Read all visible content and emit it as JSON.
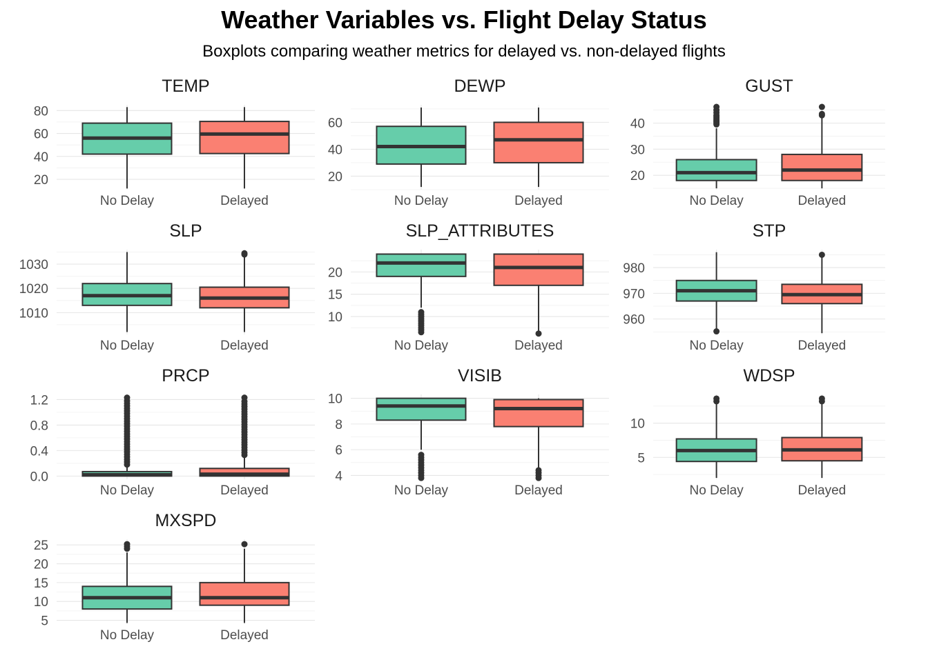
{
  "title": "Weather Variables vs. Flight Delay Status",
  "subtitle": "Boxplots comparing weather metrics for delayed vs. non-delayed flights",
  "colors": {
    "No Delay": "#66cdaa",
    "Delayed": "#fa8072"
  },
  "chart_data": [
    {
      "type": "boxplot",
      "title": "TEMP",
      "categories": [
        "No Delay",
        "Delayed"
      ],
      "ylim": [
        11,
        85
      ],
      "yticks": [
        20,
        40,
        60,
        80
      ],
      "ytick_labels": [
        "20",
        "40",
        "60",
        "80"
      ],
      "boxes": [
        {
          "category": "No Delay",
          "whisker_low": 12,
          "q1": 42,
          "median": 56,
          "q3": 69,
          "whisker_high": 83,
          "outliers": []
        },
        {
          "category": "Delayed",
          "whisker_low": 12,
          "q1": 42.5,
          "median": 59.5,
          "q3": 70.5,
          "whisker_high": 83,
          "outliers": []
        }
      ]
    },
    {
      "type": "boxplot",
      "title": "DEWP",
      "categories": [
        "No Delay",
        "Delayed"
      ],
      "ylim": [
        10,
        73
      ],
      "yticks": [
        20,
        40,
        60
      ],
      "ytick_labels": [
        "20",
        "40",
        "60"
      ],
      "boxes": [
        {
          "category": "No Delay",
          "whisker_low": 12,
          "q1": 29,
          "median": 42,
          "q3": 57,
          "whisker_high": 71,
          "outliers": []
        },
        {
          "category": "Delayed",
          "whisker_low": 12,
          "q1": 30,
          "median": 47,
          "q3": 60,
          "whisker_high": 71,
          "outliers": []
        }
      ]
    },
    {
      "type": "boxplot",
      "title": "GUST",
      "categories": [
        "No Delay",
        "Delayed"
      ],
      "ylim": [
        14.5,
        47
      ],
      "yticks": [
        20,
        30,
        40
      ],
      "ytick_labels": [
        "20",
        "30",
        "40"
      ],
      "boxes": [
        {
          "category": "No Delay",
          "whisker_low": 15,
          "q1": 18,
          "median": 21,
          "q3": 26,
          "whisker_high": 38,
          "outliers": [
            39.5,
            40,
            40.5,
            41,
            41.5,
            42,
            42.5,
            43,
            44,
            45,
            46.2
          ]
        },
        {
          "category": "Delayed",
          "whisker_low": 15,
          "q1": 18,
          "median": 22,
          "q3": 28,
          "whisker_high": 42,
          "outliers": [
            43,
            43.5,
            46.2
          ]
        }
      ]
    },
    {
      "type": "boxplot",
      "title": "SLP",
      "categories": [
        "No Delay",
        "Delayed"
      ],
      "ylim": [
        1001,
        1036
      ],
      "yticks": [
        1010,
        1020,
        1030
      ],
      "ytick_labels": [
        "1010",
        "1020",
        "1030"
      ],
      "boxes": [
        {
          "category": "No Delay",
          "whisker_low": 1002,
          "q1": 1013,
          "median": 1017,
          "q3": 1022,
          "whisker_high": 1035,
          "outliers": []
        },
        {
          "category": "Delayed",
          "whisker_low": 1002,
          "q1": 1012,
          "median": 1016,
          "q3": 1020.5,
          "whisker_high": 1033,
          "outliers": [
            1034,
            1034.5
          ]
        }
      ]
    },
    {
      "type": "boxplot",
      "title": "SLP_ATTRIBUTES",
      "categories": [
        "No Delay",
        "Delayed"
      ],
      "ylim": [
        6,
        25
      ],
      "yticks": [
        10,
        15,
        20
      ],
      "ytick_labels": [
        "10",
        "15",
        "20"
      ],
      "boxes": [
        {
          "category": "No Delay",
          "whisker_low": 12,
          "q1": 19,
          "median": 22,
          "q3": 24,
          "whisker_high": 24,
          "outliers": [
            6.5,
            7,
            7.5,
            8,
            8.5,
            9,
            9.5,
            10,
            10.5,
            11
          ]
        },
        {
          "category": "Delayed",
          "whisker_low": 6.5,
          "q1": 17,
          "median": 21,
          "q3": 24,
          "whisker_high": 24,
          "outliers": [
            6.2
          ]
        }
      ]
    },
    {
      "type": "boxplot",
      "title": "STP",
      "categories": [
        "No Delay",
        "Delayed"
      ],
      "ylim": [
        954,
        987
      ],
      "yticks": [
        960,
        970,
        980
      ],
      "ytick_labels": [
        "960",
        "970",
        "980"
      ],
      "boxes": [
        {
          "category": "No Delay",
          "whisker_low": 956,
          "q1": 967,
          "median": 971,
          "q3": 975,
          "whisker_high": 986,
          "outliers": [
            955.2
          ]
        },
        {
          "category": "Delayed",
          "whisker_low": 954.5,
          "q1": 966,
          "median": 969.5,
          "q3": 973.5,
          "whisker_high": 984,
          "outliers": [
            985
          ]
        }
      ]
    },
    {
      "type": "boxplot",
      "title": "PRCP",
      "categories": [
        "No Delay",
        "Delayed"
      ],
      "ylim": [
        -0.05,
        1.28
      ],
      "yticks": [
        0.0,
        0.4,
        0.8,
        1.2
      ],
      "ytick_labels": [
        "0.0",
        "0.4",
        "0.8",
        "1.2"
      ],
      "boxes": [
        {
          "category": "No Delay",
          "whisker_low": 0,
          "q1": 0,
          "median": 0.02,
          "q3": 0.07,
          "whisker_high": 0.15,
          "outliers": [
            0.18,
            0.22,
            0.26,
            0.3,
            0.34,
            0.38,
            0.42,
            0.46,
            0.5,
            0.54,
            0.58,
            0.62,
            0.66,
            0.7,
            0.74,
            0.78,
            0.82,
            0.86,
            0.9,
            0.94,
            0.98,
            1.02,
            1.06,
            1.1,
            1.14,
            1.18,
            1.23
          ]
        },
        {
          "category": "Delayed",
          "whisker_low": 0,
          "q1": 0,
          "median": 0.03,
          "q3": 0.12,
          "whisker_high": 0.3,
          "outliers": [
            0.33,
            0.37,
            0.41,
            0.45,
            0.49,
            0.53,
            0.57,
            0.61,
            0.65,
            0.69,
            0.73,
            0.77,
            0.81,
            0.85,
            0.89,
            0.93,
            0.97,
            1.01,
            1.05,
            1.09,
            1.13,
            1.17,
            1.23
          ]
        }
      ]
    },
    {
      "type": "boxplot",
      "title": "VISIB",
      "categories": [
        "No Delay",
        "Delayed"
      ],
      "ylim": [
        3.7,
        10.3
      ],
      "yticks": [
        4,
        6,
        8,
        10
      ],
      "ytick_labels": [
        "4",
        "6",
        "8",
        "10"
      ],
      "boxes": [
        {
          "category": "No Delay",
          "whisker_low": 6,
          "q1": 8.3,
          "median": 9.4,
          "q3": 10,
          "whisker_high": 10,
          "outliers": [
            3.8,
            4.0,
            4.2,
            4.4,
            4.6,
            4.8,
            5.0,
            5.2,
            5.4,
            5.6
          ]
        },
        {
          "category": "Delayed",
          "whisker_low": 4.6,
          "q1": 7.8,
          "median": 9.2,
          "q3": 9.9,
          "whisker_high": 10,
          "outliers": [
            3.8,
            4.0,
            4.2,
            4.4
          ]
        }
      ]
    },
    {
      "type": "boxplot",
      "title": "WDSP",
      "categories": [
        "No Delay",
        "Delayed"
      ],
      "ylim": [
        1.8,
        14.2
      ],
      "yticks": [
        5,
        10
      ],
      "ytick_labels": [
        "5",
        "10"
      ],
      "boxes": [
        {
          "category": "No Delay",
          "whisker_low": 2,
          "q1": 4.4,
          "median": 6,
          "q3": 7.7,
          "whisker_high": 12.8,
          "outliers": [
            13.2,
            13.6
          ]
        },
        {
          "category": "Delayed",
          "whisker_low": 2,
          "q1": 4.5,
          "median": 6.1,
          "q3": 7.9,
          "whisker_high": 12.8,
          "outliers": [
            13.2,
            13.6
          ]
        }
      ]
    },
    {
      "type": "boxplot",
      "title": "MXSPD",
      "categories": [
        "No Delay",
        "Delayed"
      ],
      "ylim": [
        4,
        26.5
      ],
      "yticks": [
        5,
        10,
        15,
        20,
        25
      ],
      "ytick_labels": [
        "5",
        "10",
        "15",
        "20",
        "25"
      ],
      "boxes": [
        {
          "category": "No Delay",
          "whisker_low": 4.3,
          "q1": 8,
          "median": 11,
          "q3": 14,
          "whisker_high": 23,
          "outliers": [
            24,
            24.6,
            25.2
          ]
        },
        {
          "category": "Delayed",
          "whisker_low": 4.3,
          "q1": 9,
          "median": 11,
          "q3": 15,
          "whisker_high": 24,
          "outliers": [
            25.2
          ]
        }
      ]
    }
  ]
}
